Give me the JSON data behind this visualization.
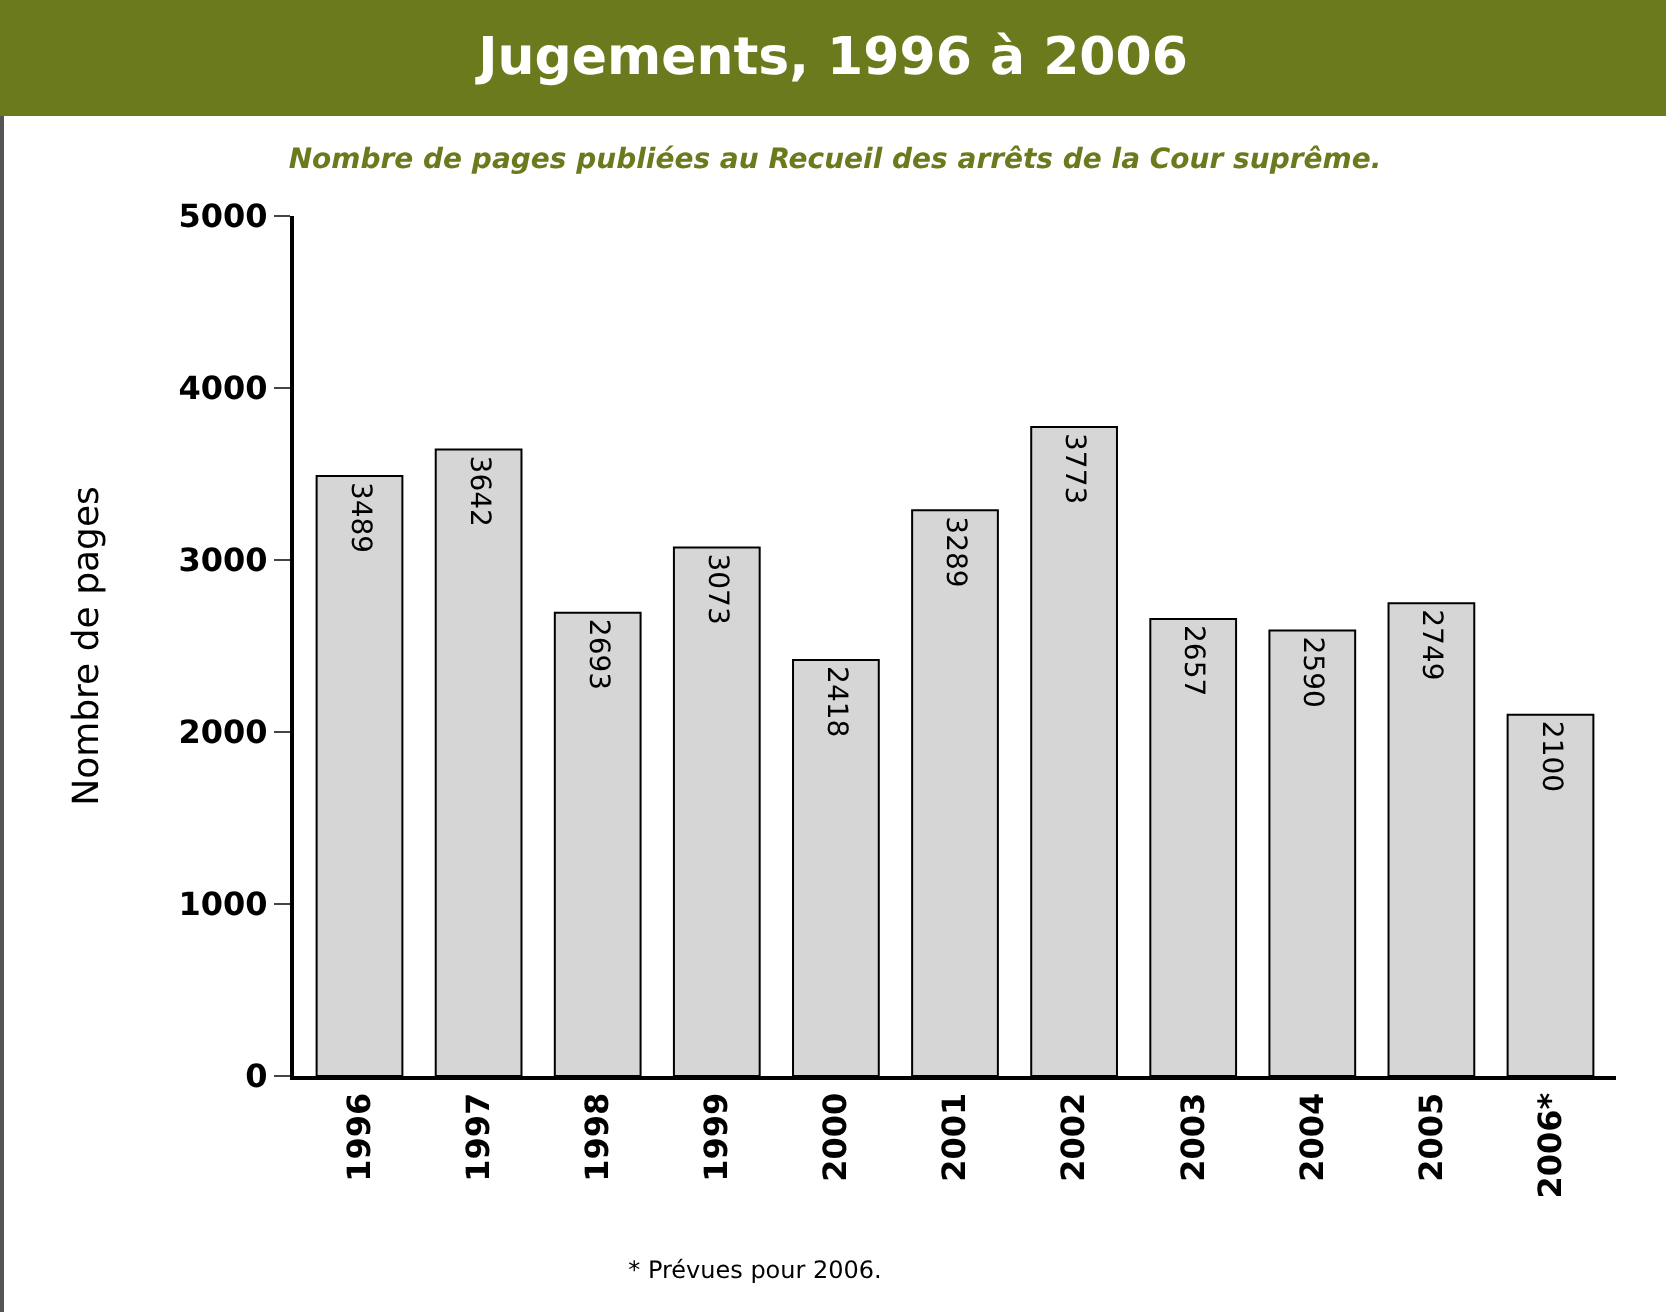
{
  "chart_data": {
    "type": "bar",
    "title": "Jugements, 1996 à 2006",
    "subtitle": "Nombre de pages publiées au Recueil des arrêts de la Cour suprême.",
    "ylabel": "Nombre de pages",
    "categories": [
      "1996",
      "1997",
      "1998",
      "1999",
      "2000",
      "2001",
      "2002",
      "2003",
      "2004",
      "2005",
      "2006*"
    ],
    "values": [
      3489,
      3642,
      2693,
      3073,
      2418,
      3289,
      3773,
      2657,
      2590,
      2749,
      2100
    ],
    "color": "#d6d6d6",
    "ylim": [
      0,
      5000
    ],
    "yticks": [
      0,
      1000,
      2000,
      3000,
      4000,
      5000
    ],
    "grid": false,
    "data_labels": true,
    "annotations": [
      "* Prévues pour 2006."
    ]
  }
}
